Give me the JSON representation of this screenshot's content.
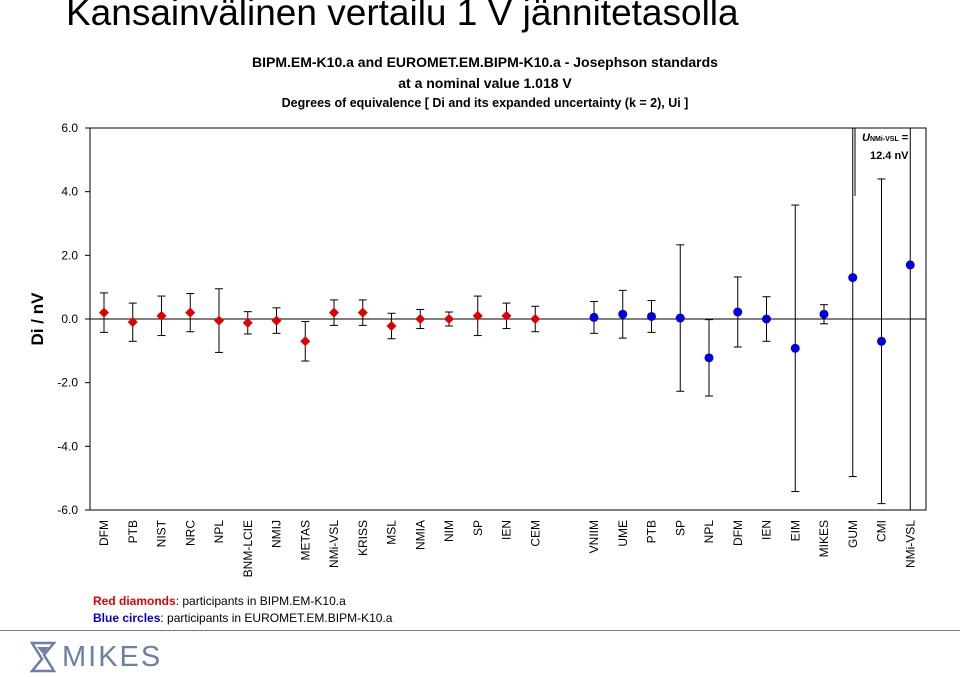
{
  "slide": {
    "title": "Kansainvälinen vertailu 1 V jännitetasolla"
  },
  "logo": {
    "text": "MIKES",
    "mark_icon": "mikes-hourglass-icon"
  },
  "legend": {
    "red_label": "Red diamonds",
    "red_text": ": participants in BIPM.EM-K10.a",
    "blue_label": "Blue circles",
    "blue_text": ": participants in EUROMET.EM.BIPM-K10.a"
  },
  "annotation": {
    "u_symbol": "U",
    "u_subscript": "NMi-VSL",
    "u_equals": " =",
    "u_value": "12.4 nV"
  },
  "colors": {
    "red": "#e00000",
    "blue": "#0000e0",
    "footer": "#6b7fa8"
  },
  "chart_data": {
    "type": "scatter",
    "title": "BIPM.EM-K10.a  and EUROMET.EM.BIPM-K10.a - Josephson standards",
    "subtitle": "at a nominal value 1.018 V",
    "subtitle2": "Degrees of equivalence [ Di  and its expanded uncertainty (k = 2), Ui ]",
    "ylabel": "Di / nV",
    "xlabel": "",
    "ylim": [
      -6.0,
      6.0
    ],
    "yticks": [
      "6.0",
      "4.0",
      "2.0",
      "0.0",
      "-2.0",
      "-4.0",
      "-6.0"
    ],
    "grid": false,
    "series": [
      {
        "name": "Red diamonds",
        "marker": "diamond",
        "color": "#e00000",
        "categories": [
          "DFM",
          "PTB",
          "NIST",
          "NRC",
          "NPL",
          "BNM-LCIE",
          "NMIJ",
          "METAS",
          "NMi-VSL",
          "KRISS",
          "MSL",
          "NMIA",
          "NIM",
          "SP",
          "IEN",
          "CEM"
        ],
        "values": [
          0.2,
          -0.1,
          0.1,
          0.2,
          -0.05,
          -0.12,
          -0.05,
          -0.7,
          0.2,
          0.2,
          -0.22,
          0.0,
          0.0,
          0.1,
          0.1,
          0.0
        ],
        "uncertainty": [
          0.62,
          0.6,
          0.62,
          0.6,
          1.0,
          0.35,
          0.4,
          0.62,
          0.4,
          0.4,
          0.4,
          0.3,
          0.22,
          0.62,
          0.4,
          0.4
        ]
      },
      {
        "name": "Blue circles",
        "marker": "circle",
        "color": "#0000e0",
        "categories": [
          "VNIIM",
          "UME",
          "PTB",
          "SP",
          "NPL",
          "DFM",
          "IEN",
          "EIM",
          "MIKES",
          "GUM",
          "CMI",
          "NMi-VSL"
        ],
        "values": [
          0.05,
          0.15,
          0.08,
          0.03,
          -1.22,
          0.22,
          0.0,
          -0.92,
          0.15,
          1.3,
          -0.7,
          1.7
        ],
        "uncertainty": [
          0.5,
          0.75,
          0.5,
          2.3,
          1.2,
          1.1,
          0.7,
          4.5,
          0.3,
          6.25,
          5.1,
          12.4
        ]
      }
    ]
  }
}
